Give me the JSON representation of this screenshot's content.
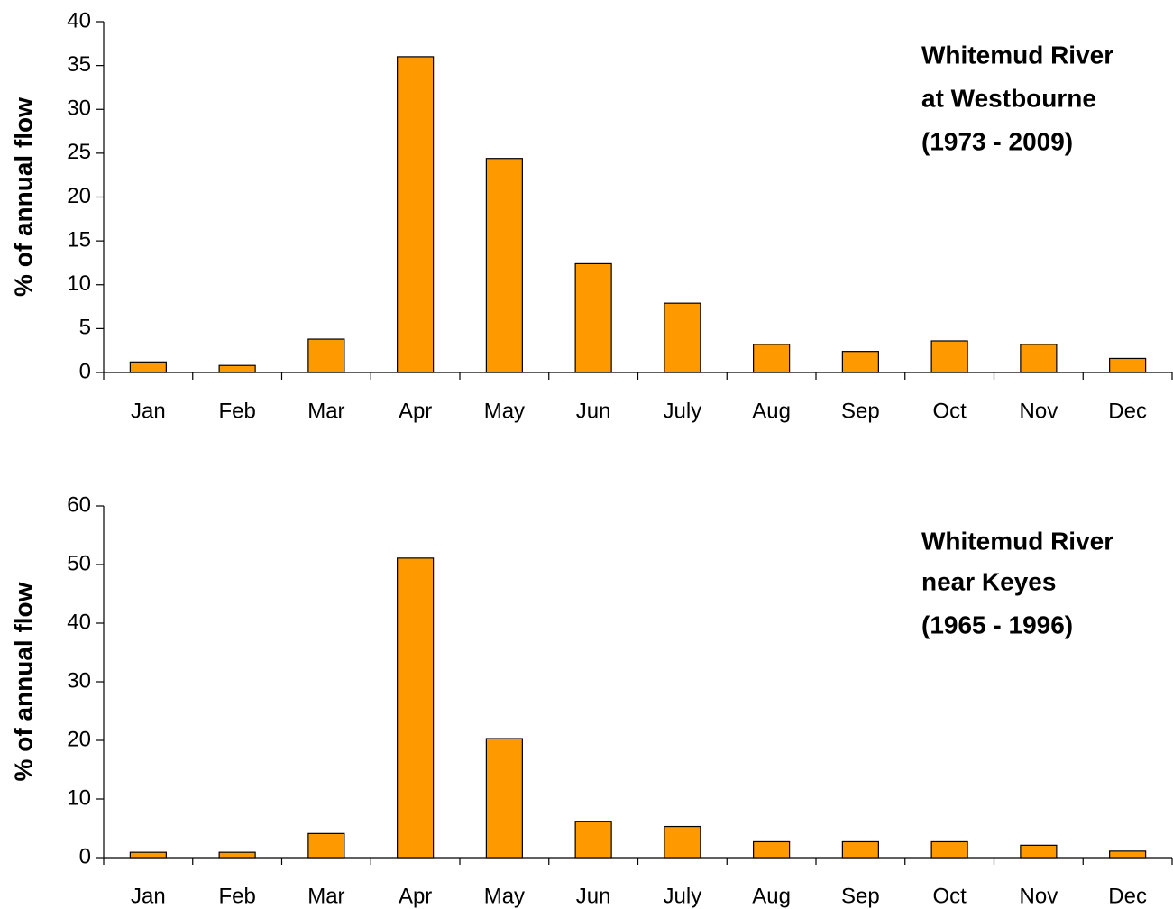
{
  "chart_data": [
    {
      "type": "bar",
      "ylabel": "% of annual flow",
      "annotation": [
        "Whitemud River",
        "at Westbourne",
        "(1973 - 2009)"
      ],
      "categories": [
        "Jan",
        "Feb",
        "Mar",
        "Apr",
        "May",
        "Jun",
        "July",
        "Aug",
        "Sep",
        "Oct",
        "Nov",
        "Dec"
      ],
      "values": [
        1.2,
        0.8,
        3.8,
        36,
        24.4,
        12.4,
        7.9,
        3.2,
        2.4,
        3.6,
        3.2,
        1.6
      ],
      "color": "#ff9900",
      "ylim": [
        0,
        40
      ],
      "yticks": [
        0,
        5,
        10,
        15,
        20,
        25,
        30,
        35,
        40
      ],
      "grid": false
    },
    {
      "type": "bar",
      "ylabel": "% of annual flow",
      "annotation": [
        "Whitemud River",
        "near Keyes",
        "(1965 - 1996)"
      ],
      "categories": [
        "Jan",
        "Feb",
        "Mar",
        "Apr",
        "May",
        "Jun",
        "July",
        "Aug",
        "Sep",
        "Oct",
        "Nov",
        "Dec"
      ],
      "values": [
        0.9,
        0.9,
        4.1,
        51.1,
        20.3,
        6.2,
        5.3,
        2.7,
        2.7,
        2.7,
        2.1,
        1.1
      ],
      "color": "#ff9900",
      "ylim": [
        0,
        60
      ],
      "yticks": [
        0,
        10,
        20,
        30,
        40,
        50,
        60
      ],
      "grid": false
    }
  ]
}
